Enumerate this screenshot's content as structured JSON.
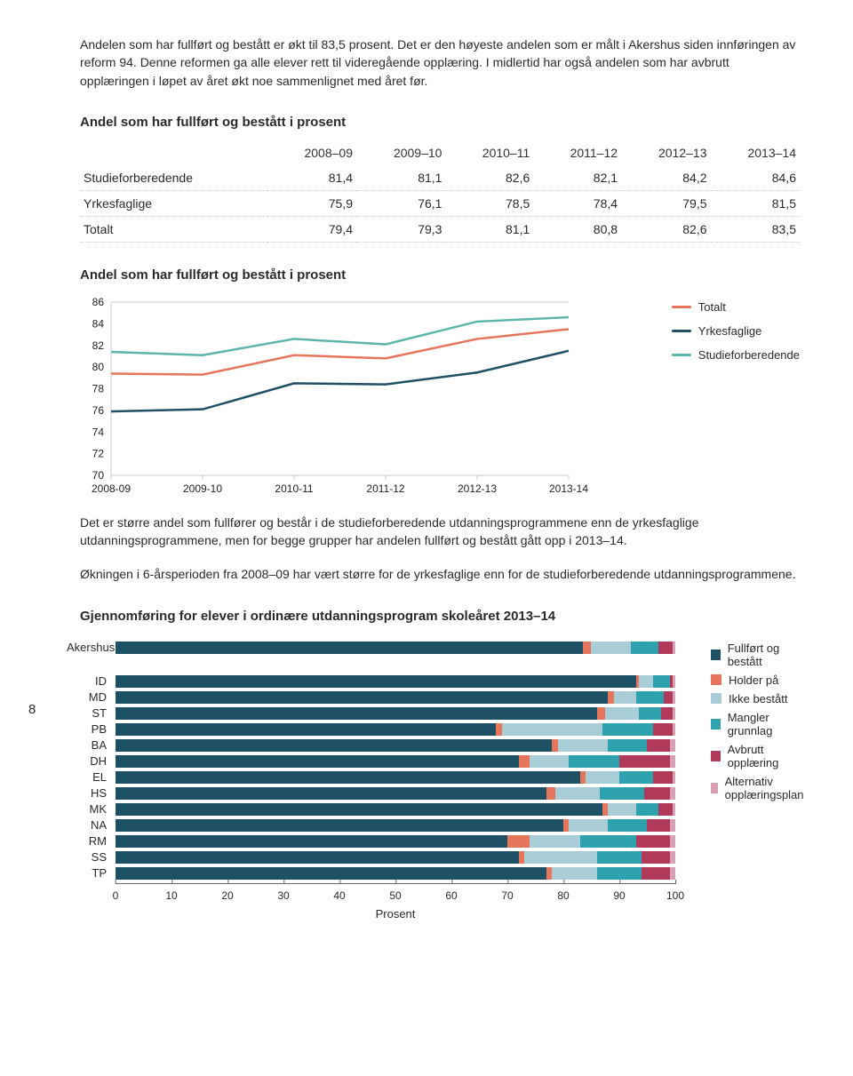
{
  "intro": "Andelen som har fullført og bestått er økt til 83,5 prosent. Det er den høyeste andelen som er målt i Akershus siden innføringen av reform 94. Denne reformen ga alle elever rett til videregående opplæring. I midlertid har også andelen som har avbrutt opplæringen i løpet av året økt noe sammenlignet med året før.",
  "table_title": "Andel som har fullført og bestått i prosent",
  "table": {
    "columns": [
      "",
      "2008–09",
      "2009–10",
      "2010–11",
      "2011–12",
      "2012–13",
      "2013–14"
    ],
    "rows": [
      [
        "Studieforberedende",
        "81,4",
        "81,1",
        "82,6",
        "82,1",
        "84,2",
        "84,6"
      ],
      [
        "Yrkesfaglige",
        "75,9",
        "76,1",
        "78,5",
        "78,4",
        "79,5",
        "81,5"
      ],
      [
        "Totalt",
        "79,4",
        "79,3",
        "81,1",
        "80,8",
        "82,6",
        "83,5"
      ]
    ]
  },
  "line_title": "Andel som har fullført og bestått i prosent",
  "line_chart": {
    "x_labels": [
      "2008-09",
      "2009-10",
      "2010-11",
      "2011-12",
      "2012-13",
      "2013-14"
    ],
    "ylim": [
      70,
      86
    ],
    "ytick_step": 2,
    "series": [
      {
        "name": "Totalt",
        "color": "#e5755b",
        "values": [
          79.4,
          79.3,
          81.1,
          80.8,
          82.6,
          83.5
        ]
      },
      {
        "name": "Yrkesfaglige",
        "color": "#1e5066",
        "values": [
          75.9,
          76.1,
          78.5,
          78.4,
          79.5,
          81.5
        ]
      },
      {
        "name": "Studieforberedende",
        "color": "#5bb5ab",
        "values": [
          81.4,
          81.1,
          82.6,
          82.1,
          84.2,
          84.6
        ]
      }
    ]
  },
  "page_number": "8",
  "para1": "Det er større andel som fullfører og består i de studieforberedende utdanningsprogrammene enn de yrkesfaglige utdanningsprogrammene, men for begge grupper har andelen fullført og bestått gått opp i 2013–14.",
  "para2": "Økningen i 6-årsperioden fra 2008–09 har vært større for de yrkesfaglige enn for de studieforberedende utdanningsprogrammene.",
  "bar_title": "Gjennomføring for elever i ordinære utdanningsprogram skoleåret 2013–14",
  "bar_chart": {
    "segment_labels": [
      "Fullført og bestått",
      "Holder på",
      "Ikke bestått",
      "Mangler grunnlag",
      "Avbrutt opplæring",
      "Alternativ opplæringsplan"
    ],
    "segment_colors": [
      "#1e5066",
      "#e5755b",
      "#a9cdd6",
      "#2fa2af",
      "#b13a5a",
      "#d99fb5"
    ],
    "categories": [
      {
        "label": "Akershus",
        "gap_after": true,
        "values": [
          83.5,
          1.5,
          7,
          5,
          2.5,
          0.5
        ]
      },
      {
        "label": "ID",
        "values": [
          93,
          0.5,
          2.5,
          3,
          0.5,
          0.5
        ]
      },
      {
        "label": "MD",
        "values": [
          88,
          1,
          4,
          5,
          1.5,
          0.5
        ]
      },
      {
        "label": "ST",
        "values": [
          86,
          1.5,
          6,
          4,
          2,
          0.5
        ]
      },
      {
        "label": "PB",
        "values": [
          68,
          1,
          18,
          9,
          3.5,
          0.5
        ]
      },
      {
        "label": "BA",
        "values": [
          78,
          1,
          9,
          7,
          4,
          1
        ]
      },
      {
        "label": "DH",
        "values": [
          72,
          2,
          7,
          9,
          9,
          1
        ]
      },
      {
        "label": "EL",
        "values": [
          83,
          1,
          6,
          6,
          3.5,
          0.5
        ]
      },
      {
        "label": "HS",
        "values": [
          77,
          1.5,
          8,
          8,
          4.5,
          1
        ]
      },
      {
        "label": "MK",
        "values": [
          87,
          1,
          5,
          4,
          2.5,
          0.5
        ]
      },
      {
        "label": "NA",
        "values": [
          80,
          1,
          7,
          7,
          4,
          1
        ]
      },
      {
        "label": "RM",
        "values": [
          70,
          4,
          9,
          10,
          6,
          1
        ]
      },
      {
        "label": "SS",
        "values": [
          72,
          1,
          13,
          8,
          5,
          1
        ]
      },
      {
        "label": "TP",
        "values": [
          77,
          1,
          8,
          8,
          5,
          1
        ]
      }
    ],
    "xaxis": {
      "min": 0,
      "max": 100,
      "step": 10,
      "label": "Prosent"
    }
  }
}
